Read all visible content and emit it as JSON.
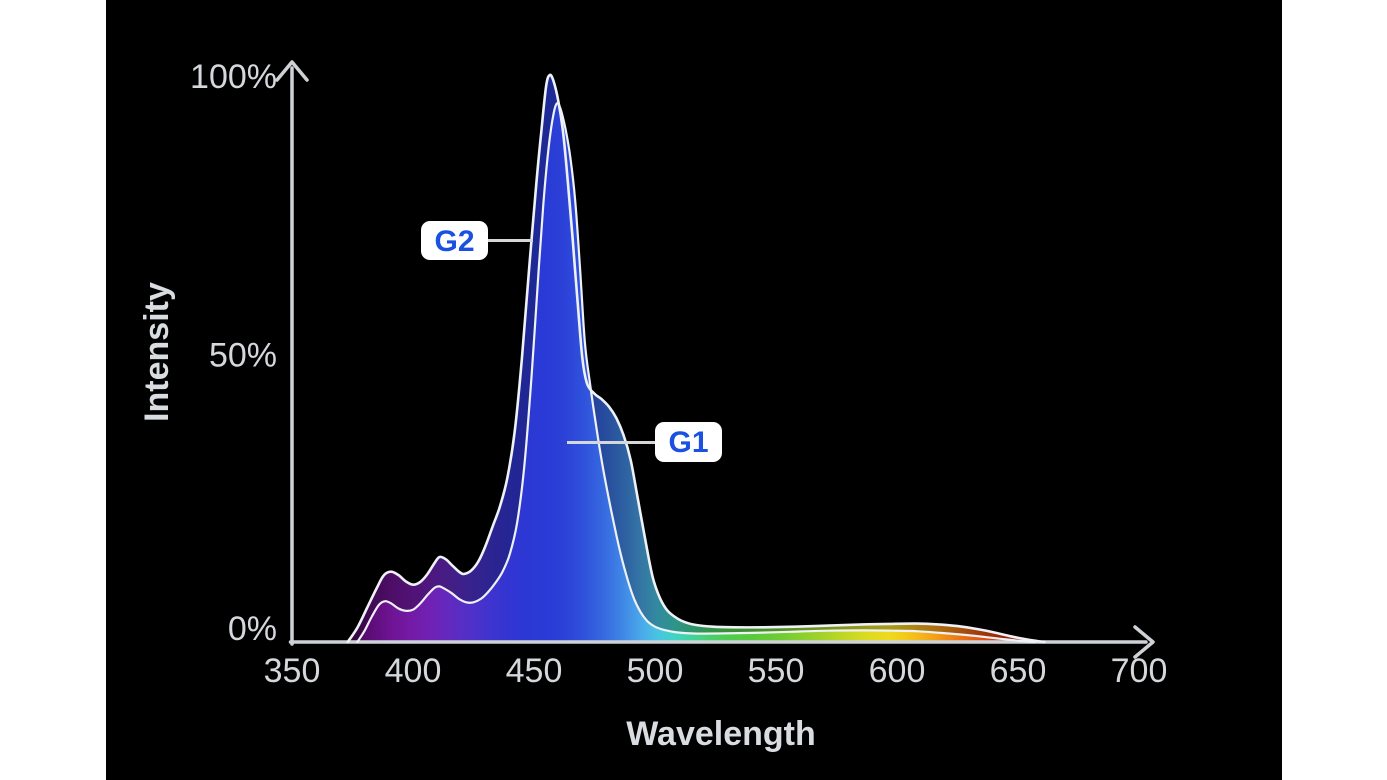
{
  "page": {
    "background_color": "#ffffff",
    "panel_color": "#000000"
  },
  "chart_data": {
    "type": "area",
    "title": "",
    "xlabel": "Wavelength",
    "ylabel": "Intensity",
    "x_ticks": [
      350,
      400,
      450,
      500,
      550,
      600,
      650,
      700
    ],
    "y_ticks": [
      {
        "value": 0,
        "label": "0%"
      },
      {
        "value": 50,
        "label": "50%"
      },
      {
        "value": 100,
        "label": "100%"
      }
    ],
    "xlim": [
      350,
      710
    ],
    "ylim": [
      0,
      100
    ],
    "grid": false,
    "axis_color": "#ced2d7",
    "label_color": "#d4d7db",
    "curve_outline_color": "#eef1f5",
    "series": [
      {
        "name": "G2",
        "points": [
          [
            373,
            0
          ],
          [
            377,
            2.5
          ],
          [
            381,
            6
          ],
          [
            385,
            9.5
          ],
          [
            388,
            11.8
          ],
          [
            391,
            12.4
          ],
          [
            394,
            11.8
          ],
          [
            397,
            10.7
          ],
          [
            400,
            10.1
          ],
          [
            403,
            10.6
          ],
          [
            406,
            12
          ],
          [
            409,
            14
          ],
          [
            411,
            15
          ],
          [
            413.5,
            14.6
          ],
          [
            416,
            13.6
          ],
          [
            419,
            12.4
          ],
          [
            421,
            12
          ],
          [
            424,
            12.6
          ],
          [
            427,
            14.2
          ],
          [
            430,
            17
          ],
          [
            433,
            20.5
          ],
          [
            436,
            24
          ],
          [
            439,
            29
          ],
          [
            442,
            37
          ],
          [
            445,
            50
          ],
          [
            448,
            66
          ],
          [
            451,
            81
          ],
          [
            453,
            90
          ],
          [
            455,
            98
          ],
          [
            456.5,
            100
          ],
          [
            458,
            99
          ],
          [
            460,
            95.5
          ],
          [
            462,
            90
          ],
          [
            464,
            81
          ],
          [
            466,
            71
          ],
          [
            468,
            60
          ],
          [
            470,
            50
          ],
          [
            472,
            45.5
          ],
          [
            475,
            43.8
          ],
          [
            478,
            42.8
          ],
          [
            481,
            41.5
          ],
          [
            484,
            39.5
          ],
          [
            487,
            36.5
          ],
          [
            490,
            32
          ],
          [
            493,
            25
          ],
          [
            496,
            18
          ],
          [
            499,
            11.5
          ],
          [
            502,
            7.8
          ],
          [
            505,
            5.6
          ],
          [
            509,
            4.2
          ],
          [
            513,
            3.4
          ],
          [
            517,
            3
          ],
          [
            524,
            2.7
          ],
          [
            533,
            2.6
          ],
          [
            545,
            2.6
          ],
          [
            558,
            2.7
          ],
          [
            572,
            2.9
          ],
          [
            586,
            3.1
          ],
          [
            598,
            3.2
          ],
          [
            608,
            3.25
          ],
          [
            617,
            3.1
          ],
          [
            625,
            2.8
          ],
          [
            633,
            2.3
          ],
          [
            640,
            1.7
          ],
          [
            647,
            1
          ],
          [
            653,
            0.5
          ],
          [
            658,
            0.15
          ],
          [
            661,
            0
          ]
        ]
      },
      {
        "name": "G1",
        "points": [
          [
            377,
            0
          ],
          [
            380,
            2
          ],
          [
            383,
            4.5
          ],
          [
            386,
            6.6
          ],
          [
            388.5,
            7.2
          ],
          [
            391,
            6.8
          ],
          [
            394,
            5.9
          ],
          [
            397,
            5.5
          ],
          [
            400,
            5.7
          ],
          [
            403,
            6.8
          ],
          [
            406,
            8.3
          ],
          [
            409,
            9.6
          ],
          [
            411,
            9.8
          ],
          [
            413,
            9.4
          ],
          [
            416,
            8.6
          ],
          [
            419,
            7.6
          ],
          [
            422,
            7
          ],
          [
            425,
            7
          ],
          [
            428,
            7.6
          ],
          [
            431,
            8.8
          ],
          [
            434,
            10.4
          ],
          [
            437,
            12.4
          ],
          [
            440,
            15.5
          ],
          [
            443,
            21
          ],
          [
            446,
            31
          ],
          [
            449,
            47
          ],
          [
            452,
            66
          ],
          [
            454,
            78
          ],
          [
            456,
            87
          ],
          [
            458,
            93
          ],
          [
            459.5,
            95
          ],
          [
            461,
            94
          ],
          [
            463,
            90.5
          ],
          [
            465,
            85.5
          ],
          [
            467,
            78
          ],
          [
            469,
            66
          ],
          [
            471,
            53
          ],
          [
            473,
            46
          ],
          [
            475,
            40
          ],
          [
            477,
            34.5
          ],
          [
            479,
            29.5
          ],
          [
            482,
            23
          ],
          [
            485,
            17
          ],
          [
            488,
            12
          ],
          [
            491,
            8
          ],
          [
            494,
            5.3
          ],
          [
            497,
            3.6
          ],
          [
            500,
            2.7
          ],
          [
            504,
            2.1
          ],
          [
            509,
            1.7
          ],
          [
            516,
            1.5
          ],
          [
            526,
            1.5
          ],
          [
            540,
            1.6
          ],
          [
            556,
            1.8
          ],
          [
            572,
            2
          ],
          [
            586,
            2.05
          ],
          [
            598,
            2
          ],
          [
            608,
            1.9
          ],
          [
            618,
            1.6
          ],
          [
            628,
            1.25
          ],
          [
            637,
            0.85
          ],
          [
            645,
            0.45
          ],
          [
            652,
            0.15
          ],
          [
            657,
            0
          ]
        ]
      }
    ],
    "spectrum_gradient_stops": [
      [
        375,
        "#47095a"
      ],
      [
        383,
        "#5e0d7a"
      ],
      [
        391,
        "#6e1493"
      ],
      [
        399,
        "#741aa6"
      ],
      [
        407,
        "#7021b4"
      ],
      [
        415,
        "#622abf"
      ],
      [
        423,
        "#5130c8"
      ],
      [
        431,
        "#4133ce"
      ],
      [
        439,
        "#3335d2"
      ],
      [
        447,
        "#2c38d4"
      ],
      [
        455,
        "#2a3ad6"
      ],
      [
        463,
        "#2c42d8"
      ],
      [
        471,
        "#3053db"
      ],
      [
        479,
        "#376ae0"
      ],
      [
        487,
        "#4088e6"
      ],
      [
        494,
        "#4ba7ea"
      ],
      [
        501,
        "#48c4e3"
      ],
      [
        508,
        "#40d4c5"
      ],
      [
        515,
        "#42d39b"
      ],
      [
        522,
        "#48d070"
      ],
      [
        530,
        "#4fcc4d"
      ],
      [
        540,
        "#58ca3b"
      ],
      [
        552,
        "#70cc32"
      ],
      [
        564,
        "#93d12c"
      ],
      [
        576,
        "#b9d626"
      ],
      [
        588,
        "#dddb21"
      ],
      [
        597,
        "#eeda1e"
      ],
      [
        606,
        "#f4c21b"
      ],
      [
        615,
        "#f3a218"
      ],
      [
        624,
        "#ee7e14"
      ],
      [
        633,
        "#e65911"
      ],
      [
        642,
        "#dc380d"
      ],
      [
        650,
        "#d2200b"
      ],
      [
        657,
        "#ca1309"
      ],
      [
        661,
        "#c60f08"
      ]
    ],
    "annotations": [
      {
        "label": "G2",
        "text_color": "#1b51e0",
        "box_color": "#ffffff"
      },
      {
        "label": "G1",
        "text_color": "#1b51e0",
        "box_color": "#ffffff"
      }
    ]
  }
}
